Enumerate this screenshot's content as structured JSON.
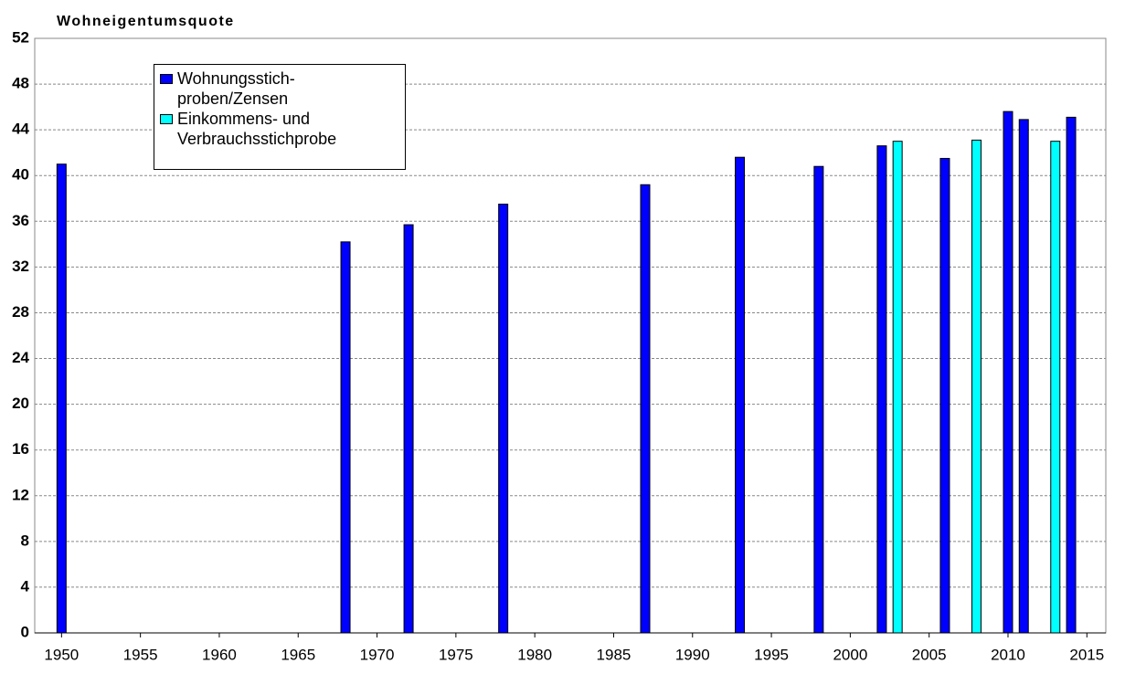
{
  "chart_data": {
    "type": "bar",
    "title": "Wohneigentumsquote",
    "series": [
      {
        "name": "Wohnungsstich-\nproben/Zensen",
        "color": "#0000ff",
        "x": [
          1950,
          1968,
          1972,
          1978,
          1987,
          1993,
          1998,
          2002,
          2006,
          2010,
          2011,
          2014
        ],
        "values": [
          41.0,
          34.2,
          35.7,
          37.5,
          39.2,
          41.6,
          40.8,
          42.6,
          41.5,
          45.6,
          44.9,
          45.1
        ]
      },
      {
        "name": "Einkommens- und\nVerbrauchsstichprobe",
        "color": "#00ffff",
        "x": [
          2003,
          2008,
          2013
        ],
        "values": [
          43.0,
          43.1,
          43.0
        ]
      }
    ],
    "xlim": [
      1948.3,
      2016.2
    ],
    "xticks": [
      1950,
      1955,
      1960,
      1965,
      1970,
      1975,
      1980,
      1985,
      1990,
      1995,
      2000,
      2005,
      2010,
      2015
    ],
    "ylim": [
      0,
      52
    ],
    "yticks": [
      0,
      4,
      8,
      12,
      16,
      20,
      24,
      28,
      32,
      36,
      40,
      44,
      48,
      52
    ],
    "grid": true,
    "legend": "top-left"
  }
}
